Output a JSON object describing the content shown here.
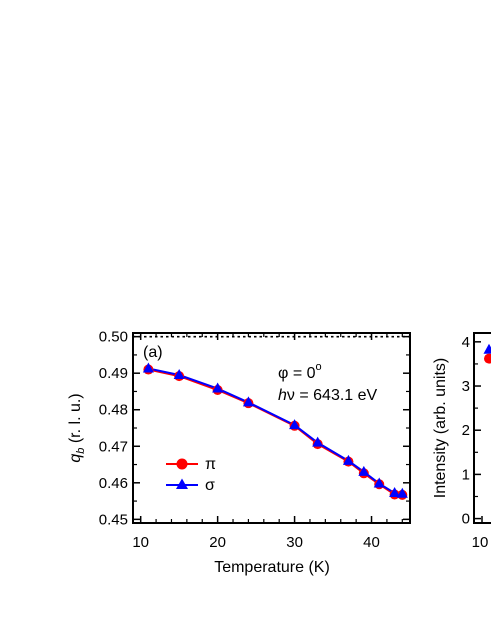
{
  "chart_data": [
    {
      "type": "line",
      "panel_label": "(a)",
      "xlabel": "Temperature (K)",
      "ylabel_main": "q",
      "ylabel_sub": "b",
      "ylabel_rest": " (r. l. u.)",
      "xlim": [
        9,
        45
      ],
      "ylim": [
        0.449,
        0.501
      ],
      "xticks": [
        "10",
        "20",
        "30",
        "40"
      ],
      "yticks": [
        "0.45",
        "0.46",
        "0.47",
        "0.48",
        "0.49",
        "0.50"
      ],
      "reference_line": {
        "y": 0.5,
        "style": "dotted"
      },
      "annotation_phi": "φ  = 0",
      "annotation_phi_sup": "o",
      "annotation_hv_h": "h",
      "annotation_hv_rest": "ν = 643.1 eV",
      "legend_position": "bottom-left",
      "series": [
        {
          "name": "π",
          "color": "#ff0000",
          "marker": "circle",
          "x": [
            11,
            15,
            20,
            24,
            30,
            33,
            37,
            39,
            41,
            43,
            44
          ],
          "y": [
            0.491,
            0.4892,
            0.4854,
            0.4818,
            0.4756,
            0.4706,
            0.4658,
            0.4626,
            0.4596,
            0.4568,
            0.4567
          ]
        },
        {
          "name": "σ",
          "color": "#0000ff",
          "marker": "triangle",
          "x": [
            11,
            15,
            20,
            24,
            30,
            33,
            37,
            39,
            41,
            43,
            44
          ],
          "y": [
            0.4913,
            0.4895,
            0.4858,
            0.482,
            0.4758,
            0.471,
            0.466,
            0.463,
            0.4598,
            0.4572,
            0.457
          ]
        }
      ]
    },
    {
      "type": "scatter",
      "ylabel": "Intensity (arb. units)",
      "ylim": [
        -0.1,
        4.2
      ],
      "yticks": [
        "0",
        "1",
        "2",
        "3",
        "4"
      ],
      "xticks": [
        "10"
      ],
      "series": [
        {
          "color": "#0000ff",
          "marker": "triangle",
          "x": [
            10
          ],
          "y": [
            3.82
          ]
        },
        {
          "color": "#ff0000",
          "marker": "circle",
          "x": [
            10
          ],
          "y": [
            3.62
          ]
        }
      ]
    }
  ]
}
